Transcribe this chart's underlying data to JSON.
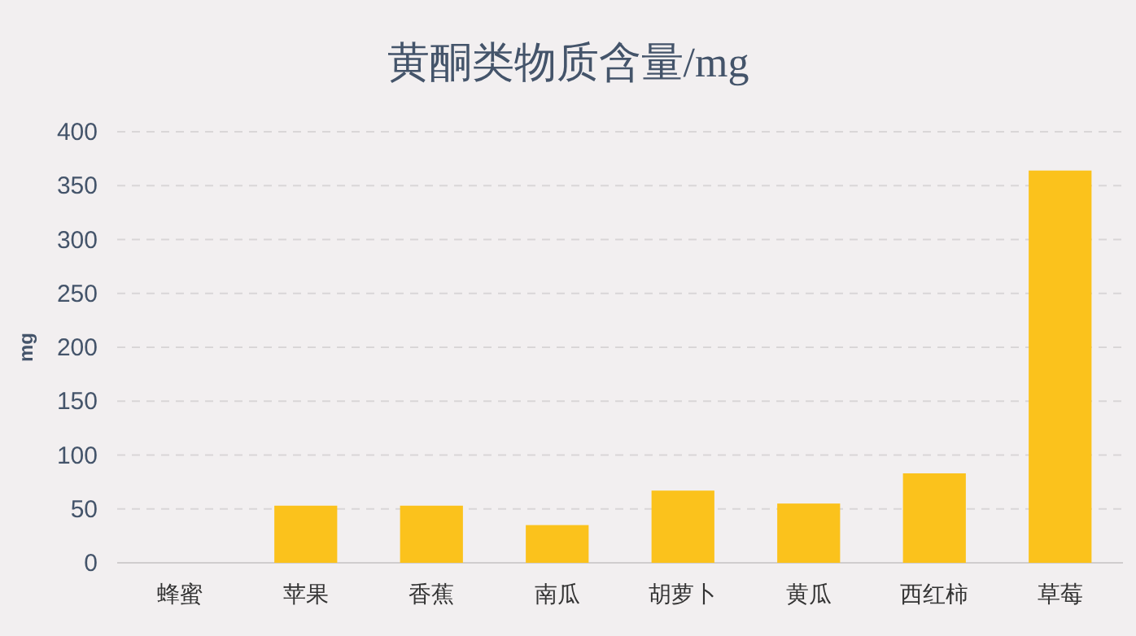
{
  "chart_data": {
    "type": "bar",
    "title": "黄酮类物质含量/mg",
    "ylabel": "mg",
    "categories": [
      "蜂蜜",
      "苹果",
      "香蕉",
      "南瓜",
      "胡萝卜",
      "黄瓜",
      "西红柿",
      "草莓"
    ],
    "values": [
      0,
      53,
      53,
      35,
      67,
      55,
      83,
      364
    ],
    "color": "#fbc21c",
    "ylim": [
      0,
      400
    ],
    "yticks": [
      0,
      50,
      100,
      150,
      200,
      250,
      300,
      350,
      400
    ],
    "grid": "y"
  }
}
